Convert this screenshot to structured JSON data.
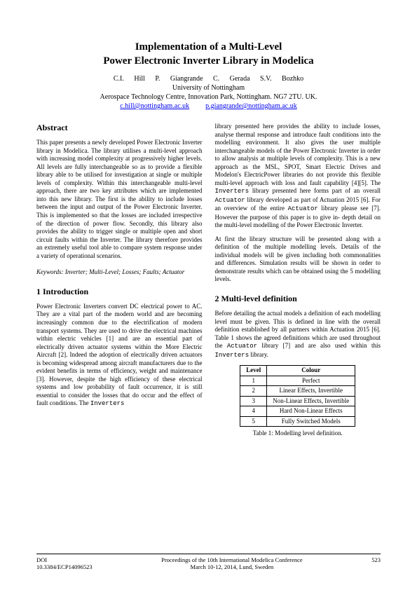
{
  "title": {
    "line1": "Implementation of a Multi-Level",
    "line2": "Power Electronic Inverter Library in Modelica"
  },
  "authors": "C.I. Hill   P. Giangrande   C. Gerada   S.V. Bozhko",
  "affiliation": {
    "line1": "University of Nottingham",
    "line2": "Aerospace Technology Centre, Innovation Park, Nottingham. NG7 2TU. UK."
  },
  "emails": {
    "e1": "c.hill@nottingham.ac.uk",
    "e2": "p.giangrande@nottingham.ac.uk"
  },
  "abstract": {
    "heading": "Abstract",
    "text": "This paper presents a newly developed Power Electronic Inverter library in Modelica. The library utilises a multi-level approach with increasing model complexity at progressively higher levels. All levels are fully interchangeable so as to provide a flexible library able to be utilised for investigation at single or multiple levels of complexity. Within this interchangeable multi-level approach, there are two key attributes which are implemented into this new library. The first is the ability to include losses between the input and output of the Power Electronic Inverter. This is implemented so that the losses are included irrespective of the direction of power flow. Secondly, this library also provides the ability to trigger single or multiple open and short circuit faults within the Inverter. The library therefore provides an extremely useful tool able to compare system response under a variety of operational scenarios.",
    "keywords": "Keywords: Inverter; Multi-Level; Losses; Faults; Actuator"
  },
  "section1": {
    "heading": "1    Introduction",
    "p1_a": "Power Electronic Inverters convert DC electrical power to AC. They are a vital part of the modern world and are becoming increasingly common due to the electrification of modern transport systems. They are used to drive the electrical machines within electric vehicles [1] and are an essential part of electrically driven actuator systems within the More Electric Aircraft [2]. Indeed the adoption of electrically driven actuators is becoming widespread among aircraft manufacturers due to the evident benefits in terms of efficiency, weight and maintenance [3]. However, despite the high efficiency of these electrical systems and low probability of fault occurrence, it is still essential to consider the losses that do occur and the effect of fault conditions. The ",
    "p1_b": "library presented here provides the ability to include losses, analyse thermal response and introduce fault conditions into the modelling environment. It also gives the user multiple interchangeable models of the Power Electronic Inverter in order to allow analysis at multiple levels of complexity. This is a new approach as the MSL, SPOT, Smart Electric Drives and Modelon's ElectricPower libraries do not provide this flexible multi-level approach with loss and fault capability [4][5]. The ",
    "p1_c": " library presented here forms part of an overall ",
    "p1_d": " library developed as part of Actuation 2015 [6]. For an overview of the entire ",
    "p1_e": " library please see [7].  However the purpose of this paper is to give in- depth detail on the multi-level modelling of the Power Electronic Inverter.",
    "p2": "At first the library structure will be presented along with a definition of the multiple modelling levels. Details of the individual models will be given including both commonalities and differences. Simulation results will be shown in order to demonstrate results which can be obtained using the 5 modelling levels.",
    "mono_inverters": "Inverters",
    "mono_actuator": "Actuator"
  },
  "section2": {
    "heading": "2    Multi-level definition",
    "p1_a": "Before detailing the actual models a definition of each modelling level must be given. This is defined in line with the overall definition established by all partners within Actuation 2015 [6]. Table 1 shows the agreed definitions which are used throughout the ",
    "p1_b": " library [7] and are also used within this ",
    "p1_c": " library.",
    "mono_actuator": "Actuator",
    "mono_inverters": "Inverters"
  },
  "table": {
    "headers": [
      "Level",
      "Colour"
    ],
    "rows": [
      [
        "1",
        "Perfect"
      ],
      [
        "2",
        "Linear Effects, Invertible"
      ],
      [
        "3",
        "Non-Linear Effects, Invertible"
      ],
      [
        "4",
        "Hard Non-Linear Effects"
      ],
      [
        "5",
        "Fully Switched Models"
      ]
    ],
    "caption": "Table 1: Modelling level definition."
  },
  "footer": {
    "doi_label": "DOI",
    "doi_value": "10.3384/ECP14096523",
    "proc_line1": "Proceedings of the 10th International Modelica Conference",
    "proc_line2": "March 10-12, 2014, Lund, Sweden",
    "page": "523"
  }
}
